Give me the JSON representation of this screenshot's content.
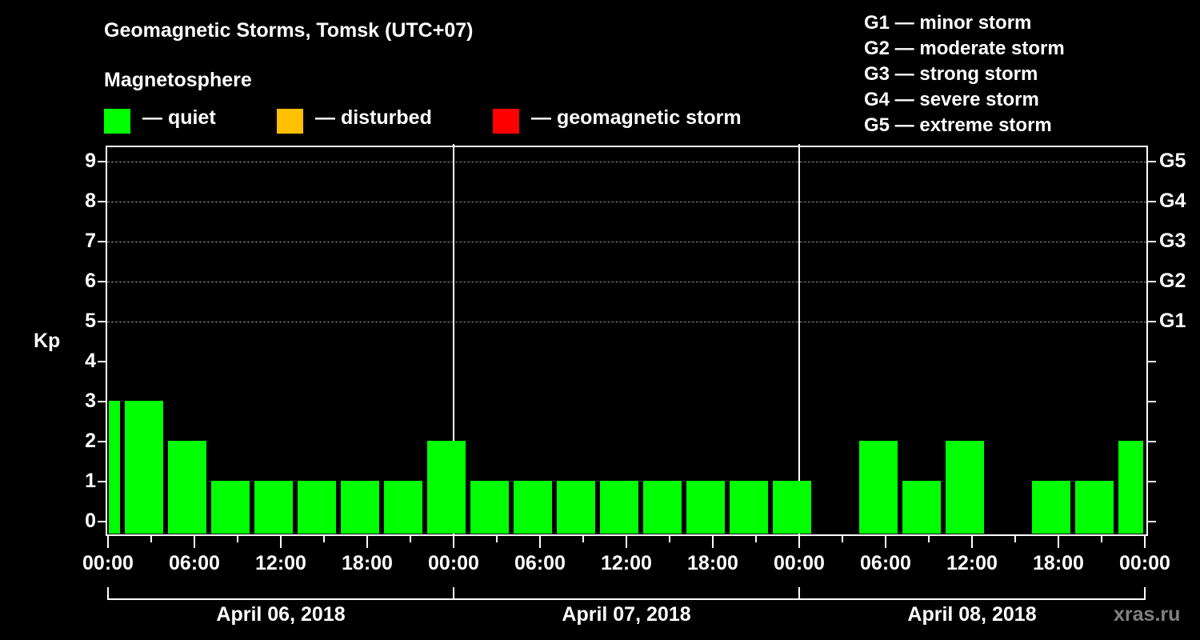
{
  "header": {
    "title": "Geomagnetic Storms, Tomsk (UTC+07)",
    "subtitle": "Magnetosphere"
  },
  "legend": [
    {
      "label": "— quiet",
      "color": "#00ff00"
    },
    {
      "label": "— disturbed",
      "color": "#ffc000"
    },
    {
      "label": "— geomagnetic storm",
      "color": "#ff0000"
    }
  ],
  "storm_scale": [
    "G1 — minor storm",
    "G2 — moderate storm",
    "G3 — strong storm",
    "G4 — severe storm",
    "G5 — extreme storm"
  ],
  "watermark": "xras.ru",
  "colors": {
    "background": "#000000",
    "axis": "#ffffff",
    "grid": "#8c8c8c",
    "quiet": "#00ff00",
    "disturbed": "#ffc000",
    "storm": "#ff0000"
  },
  "chart_data": {
    "type": "bar",
    "title": "Geomagnetic Storms, Tomsk (UTC+07)",
    "subtitle": "Magnetosphere",
    "xlabel": "",
    "ylabel": "Kp",
    "ylim": [
      0,
      9
    ],
    "yticks": [
      0,
      1,
      2,
      3,
      4,
      5,
      6,
      7,
      8,
      9
    ],
    "right_axis_labels": [
      {
        "value": 5,
        "label": "G1"
      },
      {
        "value": 6,
        "label": "G2"
      },
      {
        "value": 7,
        "label": "G3"
      },
      {
        "value": 8,
        "label": "G4"
      },
      {
        "value": 9,
        "label": "G5"
      }
    ],
    "grid": {
      "horizontal_dashed_at": [
        5,
        6,
        7,
        8,
        9
      ]
    },
    "x_range_hours": [
      0,
      72
    ],
    "xtick_labels": [
      "00:00",
      "06:00",
      "12:00",
      "18:00",
      "00:00",
      "06:00",
      "12:00",
      "18:00",
      "00:00",
      "06:00",
      "12:00",
      "18:00",
      "00:00"
    ],
    "xtick_hours": [
      0,
      6,
      12,
      18,
      24,
      30,
      36,
      42,
      48,
      54,
      60,
      66,
      72
    ],
    "day_labels": [
      "April 06, 2018",
      "April 07, 2018",
      "April 08, 2018"
    ],
    "day_dividers_hours": [
      24,
      48
    ],
    "bar_interval_hours": 3,
    "bar_start_offset_hours": -2,
    "series": [
      {
        "name": "Kp index",
        "color": "#00ff00",
        "bars": [
          {
            "start": "Apr 05 22:00",
            "kp": 3
          },
          {
            "start": "Apr 06 01:00",
            "kp": 3
          },
          {
            "start": "Apr 06 04:00",
            "kp": 2
          },
          {
            "start": "Apr 06 07:00",
            "kp": 1
          },
          {
            "start": "Apr 06 10:00",
            "kp": 1
          },
          {
            "start": "Apr 06 13:00",
            "kp": 1
          },
          {
            "start": "Apr 06 16:00",
            "kp": 1
          },
          {
            "start": "Apr 06 19:00",
            "kp": 1
          },
          {
            "start": "Apr 06 22:00",
            "kp": 2
          },
          {
            "start": "Apr 07 01:00",
            "kp": 1
          },
          {
            "start": "Apr 07 04:00",
            "kp": 1
          },
          {
            "start": "Apr 07 07:00",
            "kp": 1
          },
          {
            "start": "Apr 07 10:00",
            "kp": 1
          },
          {
            "start": "Apr 07 13:00",
            "kp": 1
          },
          {
            "start": "Apr 07 16:00",
            "kp": 1
          },
          {
            "start": "Apr 07 19:00",
            "kp": 1
          },
          {
            "start": "Apr 07 22:00",
            "kp": 1
          },
          {
            "start": "Apr 08 01:00",
            "kp": 0
          },
          {
            "start": "Apr 08 04:00",
            "kp": 2
          },
          {
            "start": "Apr 08 07:00",
            "kp": 1
          },
          {
            "start": "Apr 08 10:00",
            "kp": 2
          },
          {
            "start": "Apr 08 13:00",
            "kp": 0
          },
          {
            "start": "Apr 08 16:00",
            "kp": 1
          },
          {
            "start": "Apr 08 19:00",
            "kp": 1
          },
          {
            "start": "Apr 08 22:00",
            "kp": 2
          }
        ]
      }
    ]
  }
}
